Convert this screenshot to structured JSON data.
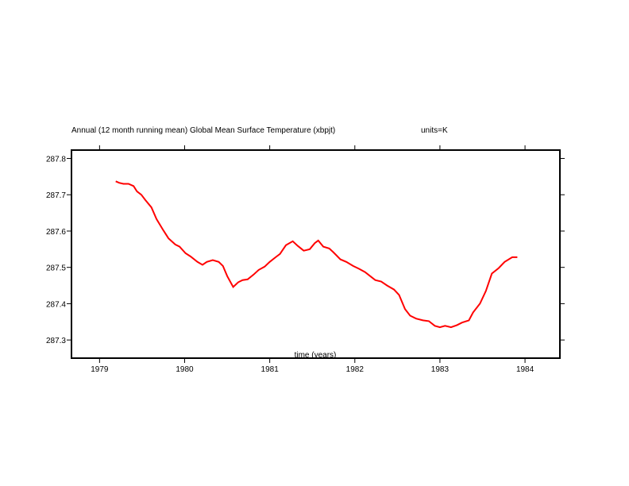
{
  "chart_data": {
    "type": "line",
    "title": "Annual (12 month running mean) Global Mean Surface Temperature (xbpjt)",
    "units_label": "units=K",
    "xlabel": "time (years)",
    "ylabel": "",
    "xlim": [
      1978.67,
      1984.41
    ],
    "ylim": [
      287.25,
      287.823
    ],
    "x_ticks": [
      1979,
      1980,
      1981,
      1982,
      1983,
      1984
    ],
    "x_tick_labels": [
      "1979",
      "1980",
      "1981",
      "1982",
      "1983",
      "1984"
    ],
    "y_ticks": [
      287.8,
      287.7,
      287.6,
      287.5,
      287.4,
      287.3
    ],
    "y_tick_labels": [
      "287.8",
      "287.7",
      "287.6",
      "287.5",
      "287.4",
      "287.3"
    ],
    "grid": false,
    "series": [
      {
        "color": "#ff0000",
        "x": [
          1979.19,
          1979.23,
          1979.28,
          1979.34,
          1979.4,
          1979.44,
          1979.49,
          1979.54,
          1979.61,
          1979.67,
          1979.75,
          1979.81,
          1979.89,
          1979.94,
          1980.01,
          1980.07,
          1980.15,
          1980.21,
          1980.26,
          1980.33,
          1980.4,
          1980.45,
          1980.5,
          1980.57,
          1980.63,
          1980.68,
          1980.74,
          1980.81,
          1980.87,
          1980.94,
          1981.0,
          1981.07,
          1981.12,
          1981.19,
          1981.27,
          1981.33,
          1981.4,
          1981.47,
          1981.53,
          1981.57,
          1981.63,
          1981.7,
          1981.75,
          1981.83,
          1981.9,
          1981.98,
          1982.05,
          1982.12,
          1982.18,
          1982.24,
          1982.31,
          1982.38,
          1982.46,
          1982.52,
          1982.59,
          1982.65,
          1982.72,
          1982.8,
          1982.87,
          1982.94,
          1983.0,
          1983.06,
          1983.13,
          1983.2,
          1983.26,
          1983.34,
          1983.39,
          1983.47,
          1983.54,
          1983.61,
          1983.69,
          1983.76,
          1983.85,
          1983.91
        ],
        "y": [
          287.737,
          287.733,
          287.73,
          287.73,
          287.724,
          287.709,
          287.7,
          287.685,
          287.665,
          287.633,
          287.602,
          287.58,
          287.563,
          287.557,
          287.539,
          287.53,
          287.515,
          287.507,
          287.515,
          287.52,
          287.515,
          287.504,
          287.476,
          287.446,
          287.459,
          287.465,
          287.467,
          287.48,
          287.493,
          287.502,
          287.515,
          287.528,
          287.537,
          287.561,
          287.572,
          287.559,
          287.546,
          287.55,
          287.567,
          287.574,
          287.557,
          287.552,
          287.541,
          287.522,
          287.515,
          287.504,
          287.496,
          287.487,
          287.476,
          287.465,
          287.461,
          287.45,
          287.439,
          287.424,
          287.385,
          287.367,
          287.359,
          287.354,
          287.352,
          287.339,
          287.335,
          287.339,
          287.335,
          287.341,
          287.348,
          287.354,
          287.376,
          287.4,
          287.435,
          287.483,
          287.498,
          287.515,
          287.528,
          287.528
        ]
      }
    ]
  }
}
